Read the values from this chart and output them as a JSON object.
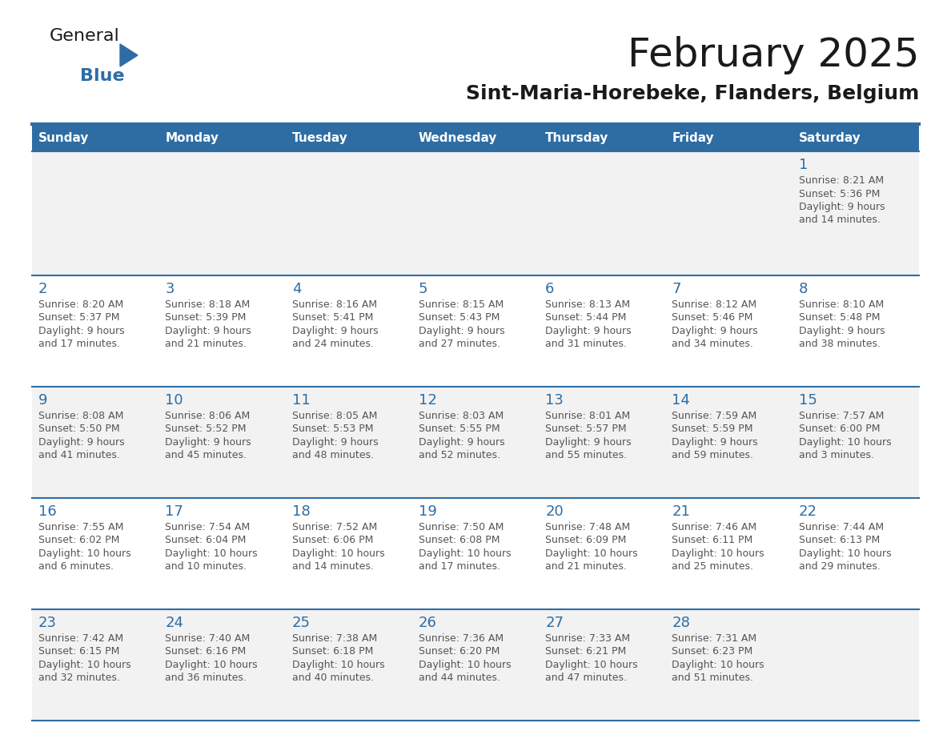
{
  "title": "February 2025",
  "subtitle": "Sint-Maria-Horebeke, Flanders, Belgium",
  "header_color": "#2e6da4",
  "header_text_color": "#ffffff",
  "cell_bg_odd": "#f2f2f2",
  "cell_bg_even": "#ffffff",
  "day_number_color": "#2e6da4",
  "text_color": "#555555",
  "border_color": "#2e6da4",
  "days_of_week": [
    "Sunday",
    "Monday",
    "Tuesday",
    "Wednesday",
    "Thursday",
    "Friday",
    "Saturday"
  ],
  "weeks": [
    [
      {
        "day": null,
        "sunrise": null,
        "sunset": null,
        "daylight": null
      },
      {
        "day": null,
        "sunrise": null,
        "sunset": null,
        "daylight": null
      },
      {
        "day": null,
        "sunrise": null,
        "sunset": null,
        "daylight": null
      },
      {
        "day": null,
        "sunrise": null,
        "sunset": null,
        "daylight": null
      },
      {
        "day": null,
        "sunrise": null,
        "sunset": null,
        "daylight": null
      },
      {
        "day": null,
        "sunrise": null,
        "sunset": null,
        "daylight": null
      },
      {
        "day": 1,
        "sunrise": "8:21 AM",
        "sunset": "5:36 PM",
        "daylight": "9 hours\nand 14 minutes."
      }
    ],
    [
      {
        "day": 2,
        "sunrise": "8:20 AM",
        "sunset": "5:37 PM",
        "daylight": "9 hours\nand 17 minutes."
      },
      {
        "day": 3,
        "sunrise": "8:18 AM",
        "sunset": "5:39 PM",
        "daylight": "9 hours\nand 21 minutes."
      },
      {
        "day": 4,
        "sunrise": "8:16 AM",
        "sunset": "5:41 PM",
        "daylight": "9 hours\nand 24 minutes."
      },
      {
        "day": 5,
        "sunrise": "8:15 AM",
        "sunset": "5:43 PM",
        "daylight": "9 hours\nand 27 minutes."
      },
      {
        "day": 6,
        "sunrise": "8:13 AM",
        "sunset": "5:44 PM",
        "daylight": "9 hours\nand 31 minutes."
      },
      {
        "day": 7,
        "sunrise": "8:12 AM",
        "sunset": "5:46 PM",
        "daylight": "9 hours\nand 34 minutes."
      },
      {
        "day": 8,
        "sunrise": "8:10 AM",
        "sunset": "5:48 PM",
        "daylight": "9 hours\nand 38 minutes."
      }
    ],
    [
      {
        "day": 9,
        "sunrise": "8:08 AM",
        "sunset": "5:50 PM",
        "daylight": "9 hours\nand 41 minutes."
      },
      {
        "day": 10,
        "sunrise": "8:06 AM",
        "sunset": "5:52 PM",
        "daylight": "9 hours\nand 45 minutes."
      },
      {
        "day": 11,
        "sunrise": "8:05 AM",
        "sunset": "5:53 PM",
        "daylight": "9 hours\nand 48 minutes."
      },
      {
        "day": 12,
        "sunrise": "8:03 AM",
        "sunset": "5:55 PM",
        "daylight": "9 hours\nand 52 minutes."
      },
      {
        "day": 13,
        "sunrise": "8:01 AM",
        "sunset": "5:57 PM",
        "daylight": "9 hours\nand 55 minutes."
      },
      {
        "day": 14,
        "sunrise": "7:59 AM",
        "sunset": "5:59 PM",
        "daylight": "9 hours\nand 59 minutes."
      },
      {
        "day": 15,
        "sunrise": "7:57 AM",
        "sunset": "6:00 PM",
        "daylight": "10 hours\nand 3 minutes."
      }
    ],
    [
      {
        "day": 16,
        "sunrise": "7:55 AM",
        "sunset": "6:02 PM",
        "daylight": "10 hours\nand 6 minutes."
      },
      {
        "day": 17,
        "sunrise": "7:54 AM",
        "sunset": "6:04 PM",
        "daylight": "10 hours\nand 10 minutes."
      },
      {
        "day": 18,
        "sunrise": "7:52 AM",
        "sunset": "6:06 PM",
        "daylight": "10 hours\nand 14 minutes."
      },
      {
        "day": 19,
        "sunrise": "7:50 AM",
        "sunset": "6:08 PM",
        "daylight": "10 hours\nand 17 minutes."
      },
      {
        "day": 20,
        "sunrise": "7:48 AM",
        "sunset": "6:09 PM",
        "daylight": "10 hours\nand 21 minutes."
      },
      {
        "day": 21,
        "sunrise": "7:46 AM",
        "sunset": "6:11 PM",
        "daylight": "10 hours\nand 25 minutes."
      },
      {
        "day": 22,
        "sunrise": "7:44 AM",
        "sunset": "6:13 PM",
        "daylight": "10 hours\nand 29 minutes."
      }
    ],
    [
      {
        "day": 23,
        "sunrise": "7:42 AM",
        "sunset": "6:15 PM",
        "daylight": "10 hours\nand 32 minutes."
      },
      {
        "day": 24,
        "sunrise": "7:40 AM",
        "sunset": "6:16 PM",
        "daylight": "10 hours\nand 36 minutes."
      },
      {
        "day": 25,
        "sunrise": "7:38 AM",
        "sunset": "6:18 PM",
        "daylight": "10 hours\nand 40 minutes."
      },
      {
        "day": 26,
        "sunrise": "7:36 AM",
        "sunset": "6:20 PM",
        "daylight": "10 hours\nand 44 minutes."
      },
      {
        "day": 27,
        "sunrise": "7:33 AM",
        "sunset": "6:21 PM",
        "daylight": "10 hours\nand 47 minutes."
      },
      {
        "day": 28,
        "sunrise": "7:31 AM",
        "sunset": "6:23 PM",
        "daylight": "10 hours\nand 51 minutes."
      },
      {
        "day": null,
        "sunrise": null,
        "sunset": null,
        "daylight": null
      }
    ]
  ]
}
